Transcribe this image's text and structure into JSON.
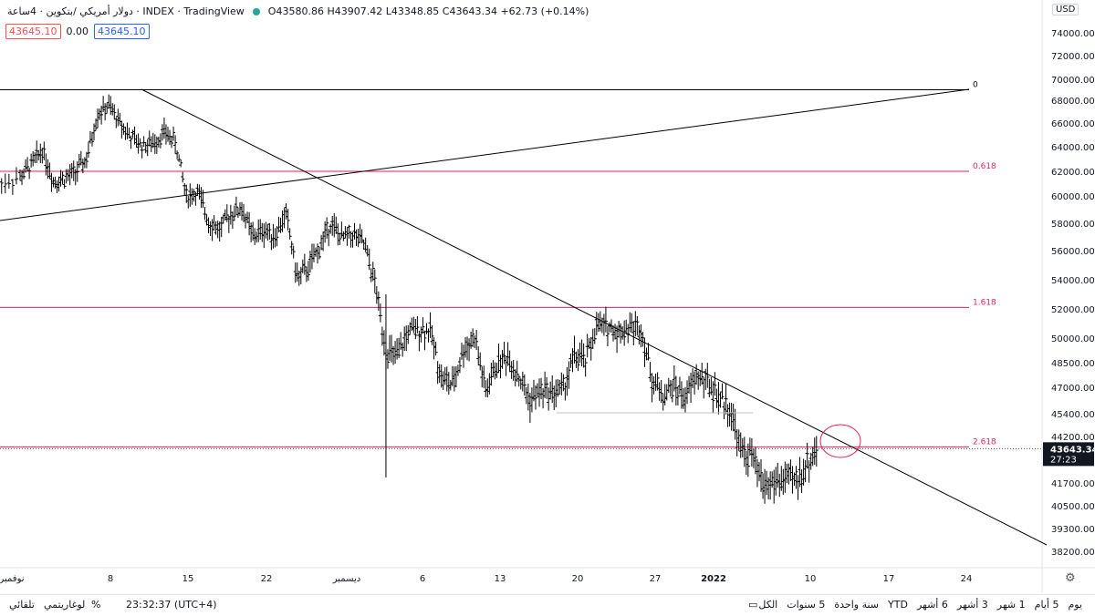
{
  "header": {
    "title": "دولار أمريكي /بتكوين · 4ساعة · INDEX · TradingView",
    "ohlc": "O43580.86 H43907.42 L43348.85 C43643.34 +62.73 (+0.14%)",
    "price_left": "43645.10",
    "spread": "0.00",
    "price_right": "43645.10",
    "currency_button": "USD"
  },
  "colors": {
    "up": "#26a69a",
    "fib": "#e91e63",
    "line": "#000000",
    "price_label_bg": "#131722"
  },
  "chart_data": {
    "type": "ohlc",
    "title": "",
    "y_axis": {
      "ticks": [
        74000,
        72000,
        70000,
        68000,
        66000,
        64000,
        62000,
        60000,
        58000,
        56000,
        54000,
        52000,
        50000,
        48500,
        47000,
        45400,
        44200,
        41700,
        40500,
        39300,
        38200
      ],
      "tick_labels": [
        "74000.00",
        "72000.00",
        "70000.00",
        "68000.00",
        "66000.00",
        "64000.00",
        "62000.00",
        "60000.00",
        "58000.00",
        "56000.00",
        "54000.00",
        "52000.00",
        "50000.00",
        "48500.00",
        "47000.00",
        "45400.00",
        "44200.00",
        "41700.00",
        "40500.00",
        "39300.00",
        "38200.00"
      ]
    },
    "x_axis": {
      "tick_labels": [
        "نوفمبر",
        "8",
        "15",
        "22",
        "ديسمبر",
        "6",
        "13",
        "20",
        "27",
        "2022",
        "10",
        "17",
        "24"
      ]
    },
    "current_price": {
      "label": "43643.34",
      "countdown": "27:23",
      "value": 43643.34
    },
    "fib_levels": [
      {
        "label": "0",
        "value": 69000
      },
      {
        "label": "0.618",
        "value": 62000
      },
      {
        "label": "1.618",
        "value": 52100
      },
      {
        "label": "2.618",
        "value": 43640
      }
    ],
    "series": [
      {
        "points": [
          [
            "2021-10-30",
            61000
          ],
          [
            "2021-11-01",
            61500
          ],
          [
            "2021-11-02",
            62500
          ],
          [
            "2021-11-03",
            63800
          ],
          [
            "2021-11-04",
            61200
          ],
          [
            "2021-11-05",
            61400
          ],
          [
            "2021-11-06",
            61900
          ],
          [
            "2021-11-07",
            63000
          ],
          [
            "2021-11-08",
            66800
          ],
          [
            "2021-11-09",
            67500
          ],
          [
            "2021-11-10",
            66000
          ],
          [
            "2021-11-11",
            64800
          ],
          [
            "2021-11-12",
            64100
          ],
          [
            "2021-11-13",
            64300
          ],
          [
            "2021-11-14",
            65200
          ],
          [
            "2021-11-15",
            64400
          ],
          [
            "2021-11-16",
            60000
          ],
          [
            "2021-11-17",
            60300
          ],
          [
            "2021-11-18",
            58200
          ],
          [
            "2021-11-19",
            57500
          ],
          [
            "2021-11-20",
            58700
          ],
          [
            "2021-11-21",
            59100
          ],
          [
            "2021-11-22",
            57000
          ],
          [
            "2021-11-23",
            57500
          ],
          [
            "2021-11-24",
            57100
          ],
          [
            "2021-11-25",
            58700
          ],
          [
            "2021-11-26",
            54100
          ],
          [
            "2021-11-27",
            54800
          ],
          [
            "2021-11-28",
            56200
          ],
          [
            "2021-11-29",
            58000
          ],
          [
            "2021-11-30",
            56900
          ],
          [
            "2021-12-01",
            57200
          ],
          [
            "2021-12-02",
            56500
          ],
          [
            "2021-12-03",
            53800
          ],
          [
            "2021-12-04",
            49200
          ],
          [
            "2021-12-05",
            48800
          ],
          [
            "2021-12-06",
            50400
          ],
          [
            "2021-12-07",
            50600
          ],
          [
            "2021-12-08",
            50500
          ],
          [
            "2021-12-09",
            47600
          ],
          [
            "2021-12-10",
            47100
          ],
          [
            "2021-12-11",
            49300
          ],
          [
            "2021-12-12",
            50100
          ],
          [
            "2021-12-13",
            46700
          ],
          [
            "2021-12-14",
            48400
          ],
          [
            "2021-12-15",
            48900
          ],
          [
            "2021-12-16",
            47600
          ],
          [
            "2021-12-17",
            46200
          ],
          [
            "2021-12-18",
            46800
          ],
          [
            "2021-12-19",
            46700
          ],
          [
            "2021-12-20",
            46900
          ],
          [
            "2021-12-21",
            48900
          ],
          [
            "2021-12-22",
            48600
          ],
          [
            "2021-12-23",
            50800
          ],
          [
            "2021-12-24",
            50800
          ],
          [
            "2021-12-25",
            50400
          ],
          [
            "2021-12-26",
            50800
          ],
          [
            "2021-12-27",
            50700
          ],
          [
            "2021-12-28",
            47500
          ],
          [
            "2021-12-29",
            46500
          ],
          [
            "2021-12-30",
            47100
          ],
          [
            "2021-12-31",
            46300
          ],
          [
            "2022-01-01",
            47700
          ],
          [
            "2022-01-02",
            47300
          ],
          [
            "2022-01-03",
            46400
          ],
          [
            "2022-01-04",
            45800
          ],
          [
            "2022-01-05",
            43400
          ],
          [
            "2022-01-06",
            43100
          ],
          [
            "2022-01-07",
            41600
          ],
          [
            "2022-01-08",
            41700
          ],
          [
            "2022-01-09",
            41900
          ],
          [
            "2022-01-10",
            41800
          ],
          [
            "2022-01-11",
            42700
          ],
          [
            "2022-01-12",
            43640
          ]
        ]
      }
    ]
  },
  "bottom_bar": {
    "ranges": [
      "يوم",
      "5 أيام",
      "1 شهر",
      "3 أشهر",
      "6 أشهر",
      "YTD",
      "سنة واحدة",
      "5 سنوات",
      "الكل"
    ],
    "time": "23:32:37 (UTC+4)",
    "percent": "%",
    "log": "لوغاريتمي",
    "auto": "تلقائي"
  }
}
